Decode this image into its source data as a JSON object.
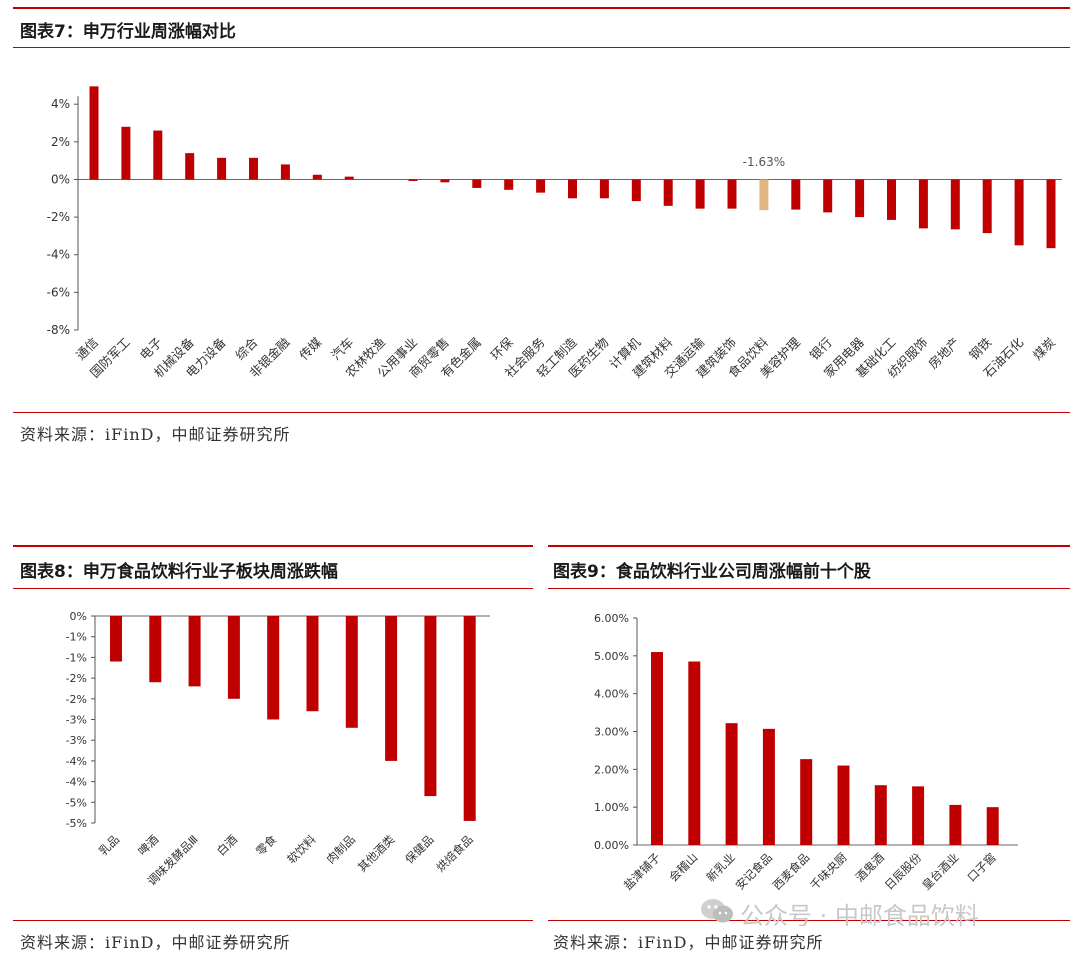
{
  "colors": {
    "brand": "#c00000",
    "highlight": "#e0b87f",
    "text": "#333333"
  },
  "watermark": {
    "text": "公众号 · 中邮食品饮料",
    "icon": "wechat-icon"
  },
  "figures": [
    {
      "title": "图表7：申万行业周涨幅对比",
      "source": "资料来源：iFinD，中邮证券研究所"
    },
    {
      "title": "图表8：申万食品饮料行业子板块周涨跌幅",
      "source": "资料来源：iFinD，中邮证券研究所"
    },
    {
      "title": "图表9：食品饮料行业公司周涨幅前十个股",
      "source": "资料来源：iFinD，中邮证券研究所"
    }
  ],
  "chart_data": [
    {
      "type": "bar",
      "title": "图表7：申万行业周涨幅对比",
      "categories": [
        "通信",
        "国防军工",
        "电子",
        "机械设备",
        "电力设备",
        "综合",
        "非银金融",
        "传媒",
        "汽车",
        "农林牧渔",
        "公用事业",
        "商贸零售",
        "有色金属",
        "环保",
        "社会服务",
        "轻工制造",
        "医药生物",
        "计算机",
        "建筑材料",
        "交通运输",
        "建筑装饰",
        "食品饮料",
        "美容护理",
        "银行",
        "家用电器",
        "基础化工",
        "纺织服饰",
        "房地产",
        "钢铁",
        "石油石化",
        "煤炭"
      ],
      "values": [
        4.95,
        2.8,
        2.6,
        1.4,
        1.15,
        1.15,
        0.8,
        0.25,
        0.15,
        0.0,
        -0.08,
        -0.15,
        -0.45,
        -0.55,
        -0.7,
        -1.0,
        -1.0,
        -1.15,
        -1.4,
        -1.55,
        -1.55,
        -1.63,
        -1.6,
        -1.75,
        -2.0,
        -2.15,
        -2.6,
        -2.65,
        -2.85,
        -3.5,
        -3.65
      ],
      "highlight_category": "食品饮料",
      "annotation": "-1.63%",
      "yticks": [
        "4%",
        "2%",
        "0%",
        "-2%",
        "-4%",
        "-6%",
        "-8%"
      ],
      "ylim": [
        -8,
        5
      ],
      "grid": false
    },
    {
      "type": "bar",
      "title": "图表8：申万食品饮料行业子板块周涨跌幅",
      "categories": [
        "乳品",
        "啤酒",
        "调味发酵品Ⅲ",
        "白酒",
        "零食",
        "软饮料",
        "肉制品",
        "其他酒类",
        "保健品",
        "烘焙食品"
      ],
      "values": [
        -1.1,
        -1.6,
        -1.7,
        -2.0,
        -2.5,
        -2.3,
        -2.7,
        -3.5,
        -4.35,
        -4.95
      ],
      "yticks": [
        "0%",
        "-1%",
        "-1%",
        "-2%",
        "-2%",
        "-3%",
        "-3%",
        "-4%",
        "-4%",
        "-5%",
        "-5%"
      ],
      "ylim": [
        -5,
        0
      ],
      "grid": false
    },
    {
      "type": "bar",
      "title": "图表9：食品饮料行业公司周涨幅前十个股",
      "categories": [
        "盐津铺子",
        "会稽山",
        "新乳业",
        "安记食品",
        "西麦食品",
        "千味央厨",
        "酒鬼酒",
        "日辰股份",
        "皇台酒业",
        "口子窖"
      ],
      "values": [
        5.1,
        4.85,
        3.22,
        3.07,
        2.27,
        2.1,
        1.58,
        1.55,
        1.06,
        1.0
      ],
      "yticks": [
        "6.00%",
        "5.00%",
        "4.00%",
        "3.00%",
        "2.00%",
        "1.00%",
        "0.00%"
      ],
      "ylim": [
        0,
        6
      ],
      "grid": false
    }
  ]
}
